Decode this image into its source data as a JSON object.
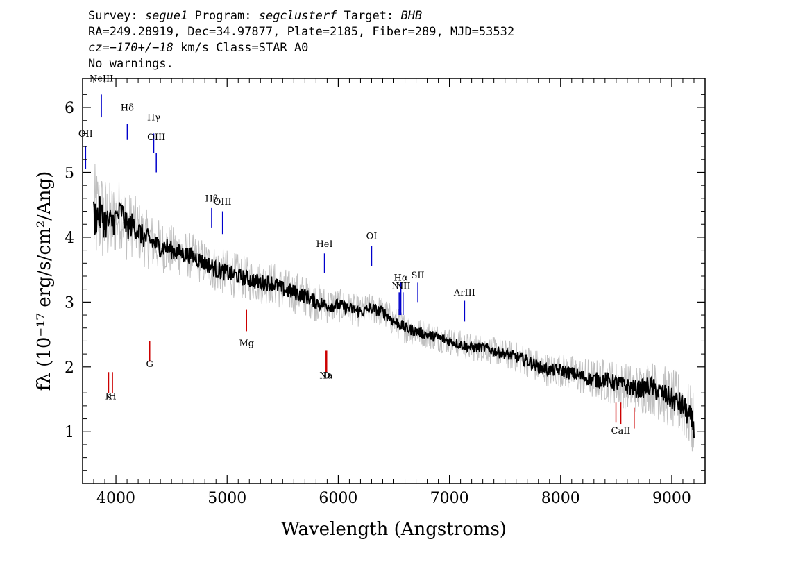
{
  "header": {
    "survey_label": "Survey:",
    "survey": "segue1",
    "program_label": "Program:",
    "program": "segclusterf",
    "target_label": "Target:",
    "target": "BHB",
    "line2": "RA=249.28919, Dec=34.97877, Plate=2185, Fiber=289, MJD=53532",
    "cz": "cz=−170+/−18",
    "cz_unit": "km/s",
    "class_text": "Class=STAR A0",
    "warnings": "No warnings."
  },
  "chart_data": {
    "type": "line",
    "xlabel": "Wavelength (Angstroms)",
    "ylabel": "fλ (10⁻¹⁷ erg/s/cm²/Ang)",
    "xlim": [
      3700,
      9300
    ],
    "ylim": [
      0.2,
      6.45
    ],
    "x_ticks": [
      4000,
      5000,
      6000,
      7000,
      8000,
      9000
    ],
    "y_ticks": [
      1,
      2,
      3,
      4,
      5,
      6
    ],
    "series": [
      {
        "role": "flux",
        "color": "#000000",
        "x": [
          3800,
          3850,
          3900,
          3950,
          4000,
          4050,
          4100,
          4150,
          4200,
          4250,
          4300,
          4350,
          4400,
          4450,
          4500,
          4600,
          4700,
          4800,
          4861,
          4900,
          5000,
          5100,
          5200,
          5300,
          5400,
          5500,
          5600,
          5700,
          5800,
          5900,
          6000,
          6100,
          6200,
          6300,
          6400,
          6500,
          6563,
          6600,
          6700,
          6800,
          6900,
          7000,
          7100,
          7200,
          7300,
          7400,
          7500,
          7600,
          7700,
          7800,
          7900,
          8000,
          8100,
          8200,
          8300,
          8400,
          8500,
          8600,
          8700,
          8800,
          8900,
          9000,
          9100,
          9200
        ],
        "y": [
          4.3,
          4.35,
          4.25,
          4.2,
          4.3,
          4.4,
          4.15,
          4.2,
          4.1,
          4.0,
          3.95,
          3.9,
          3.85,
          3.85,
          3.8,
          3.75,
          3.7,
          3.6,
          3.55,
          3.5,
          3.45,
          3.4,
          3.35,
          3.3,
          3.3,
          3.2,
          3.15,
          3.1,
          3.0,
          2.95,
          2.95,
          2.9,
          2.85,
          2.9,
          2.85,
          2.7,
          2.65,
          2.6,
          2.55,
          2.5,
          2.45,
          2.4,
          2.35,
          2.3,
          2.3,
          2.25,
          2.2,
          2.15,
          2.1,
          2.0,
          1.95,
          1.95,
          1.9,
          1.85,
          1.8,
          1.8,
          1.75,
          1.7,
          1.65,
          1.7,
          1.6,
          1.5,
          1.4,
          1.1
        ]
      },
      {
        "role": "error",
        "color": "#c0c0c0",
        "x": [
          3800,
          3900,
          4000,
          4100,
          4200,
          4400,
          4600,
          4800,
          5000,
          5200,
          5400,
          5600,
          5800,
          6000,
          6200,
          6400,
          6600,
          6800,
          7000,
          7200,
          7400,
          7600,
          7800,
          8000,
          8200,
          8400,
          8600,
          8800,
          9000,
          9200
        ],
        "y": [
          0.7,
          0.6,
          0.5,
          0.45,
          0.4,
          0.35,
          0.3,
          0.3,
          0.3,
          0.28,
          0.28,
          0.28,
          0.25,
          0.22,
          0.2,
          0.2,
          0.2,
          0.18,
          0.18,
          0.18,
          0.18,
          0.2,
          0.22,
          0.22,
          0.25,
          0.28,
          0.3,
          0.35,
          0.4,
          0.45
        ]
      }
    ],
    "line_labels": [
      {
        "text": "NeIII",
        "wavelength": 3869,
        "color": "#0000cc",
        "kind": "emission",
        "label_y": 6.4,
        "line_top": 6.2,
        "line_bottom": 5.85
      },
      {
        "text": "OII",
        "wavelength": 3727,
        "color": "#0000cc",
        "kind": "emission",
        "label_y": 5.55,
        "line_top": 5.4,
        "line_bottom": 5.05
      },
      {
        "text": "Hδ",
        "wavelength": 4102,
        "color": "#0000cc",
        "kind": "emission",
        "label_y": 5.95,
        "line_top": 5.75,
        "line_bottom": 5.5
      },
      {
        "text": "Hγ",
        "wavelength": 4340,
        "color": "#0000cc",
        "kind": "emission",
        "label_y": 5.8,
        "line_top": 5.6,
        "line_bottom": 5.3
      },
      {
        "text": "OIII",
        "wavelength": 4363,
        "color": "#0000cc",
        "kind": "emission",
        "label_y": 5.5,
        "line_top": 5.3,
        "line_bottom": 5.0
      },
      {
        "text": "Hβ",
        "wavelength": 4861,
        "color": "#0000cc",
        "kind": "emission",
        "label_y": 4.55,
        "line_top": 4.45,
        "line_bottom": 4.15
      },
      {
        "text": "OIII",
        "wavelength": 4959,
        "color": "#0000cc",
        "kind": "emission",
        "label_y": 4.5,
        "line_top": 4.4,
        "line_bottom": 4.05
      },
      {
        "text": "HeI",
        "wavelength": 5876,
        "color": "#0000cc",
        "kind": "emission",
        "label_y": 3.85,
        "line_top": 3.75,
        "line_bottom": 3.45
      },
      {
        "text": "OI",
        "wavelength": 6300,
        "color": "#0000cc",
        "kind": "emission",
        "label_y": 3.97,
        "line_top": 3.87,
        "line_bottom": 3.55
      },
      {
        "text": "NII",
        "wavelength": 6548,
        "color": "#0000cc",
        "kind": "emission",
        "label_y": 3.2,
        "line_top": 3.15,
        "line_bottom": 2.8
      },
      {
        "text": "Hα",
        "wavelength": 6563,
        "color": "#0000cc",
        "kind": "emission",
        "label_y": 3.33,
        "line_top": 3.3,
        "line_bottom": 2.8
      },
      {
        "text": "SII",
        "wavelength": 6716,
        "color": "#0000cc",
        "kind": "emission",
        "label_y": 3.37,
        "line_top": 3.3,
        "line_bottom": 3.0
      },
      {
        "text": "NII",
        "wavelength": 6583,
        "color": "#0000cc",
        "kind": "emission",
        "label_y": 3.2,
        "line_top": 3.15,
        "line_bottom": 2.8
      },
      {
        "text": "ArIII",
        "wavelength": 7136,
        "color": "#0000cc",
        "kind": "emission",
        "label_y": 3.1,
        "line_top": 3.02,
        "line_bottom": 2.7
      },
      {
        "text": "Mg",
        "wavelength": 5175,
        "color": "#cc0000",
        "kind": "absorption",
        "label_y": 2.32,
        "line_top": 2.88,
        "line_bottom": 2.55
      },
      {
        "text": "G",
        "wavelength": 4304,
        "color": "#cc0000",
        "kind": "absorption",
        "label_y": 2.0,
        "line_top": 2.4,
        "line_bottom": 2.08
      },
      {
        "text": "K",
        "wavelength": 3934,
        "color": "#cc0000",
        "kind": "absorption",
        "label_y": 1.5,
        "line_top": 1.92,
        "line_bottom": 1.6
      },
      {
        "text": "H",
        "wavelength": 3969,
        "color": "#cc0000",
        "kind": "absorption",
        "label_y": 1.5,
        "line_top": 1.92,
        "line_bottom": 1.6
      },
      {
        "text": "Na",
        "wavelength": 5890,
        "color": "#cc0000",
        "kind": "absorption",
        "label_y": 1.82,
        "line_top": 2.25,
        "line_bottom": 1.92
      },
      {
        "text": "D",
        "wavelength": 5896,
        "color": "#cc0000",
        "kind": "absorption",
        "label_y": 1.82,
        "line_top": 2.25,
        "line_bottom": 1.92
      },
      {
        "text": "CaII",
        "wavelength": 8542,
        "color": "#cc0000",
        "kind": "absorption",
        "label_y": 0.97,
        "line_top": 1.45,
        "line_bottom": 1.12
      },
      {
        "text": "",
        "wavelength": 8498,
        "color": "#cc0000",
        "kind": "absorption",
        "label_y": 0.97,
        "line_top": 1.45,
        "line_bottom": 1.15
      },
      {
        "text": "",
        "wavelength": 8662,
        "color": "#cc0000",
        "kind": "absorption",
        "label_y": 0.97,
        "line_top": 1.37,
        "line_bottom": 1.05
      }
    ]
  }
}
